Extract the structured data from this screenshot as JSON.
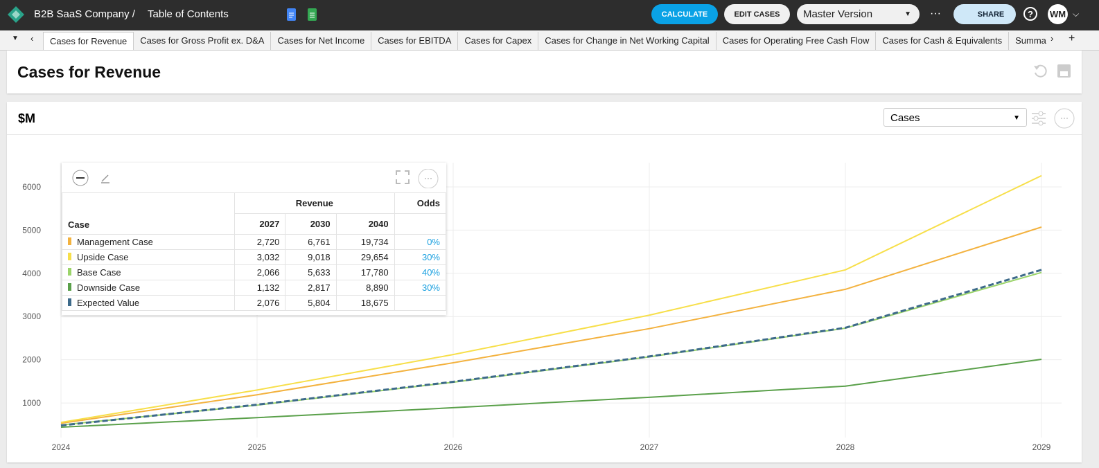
{
  "header": {
    "company": "B2B SaaS Company /",
    "toc": "Table of Contents",
    "calculate": "CALCULATE",
    "edit_cases": "EDIT CASES",
    "version": "Master Version",
    "share": "SHARE",
    "avatar": "WM"
  },
  "tabs": [
    "Cases for Revenue",
    "Cases for Gross Profit ex. D&A",
    "Cases for Net Income",
    "Cases for EBITDA",
    "Cases for Capex",
    "Cases for Change in Net Working Capital",
    "Cases for Operating Free Cash Flow",
    "Cases for Cash & Equivalents",
    "Summary Cases"
  ],
  "page_title": "Cases for Revenue",
  "panel": {
    "unit": "$M",
    "dropdown": "Cases"
  },
  "table": {
    "group_header": "Revenue",
    "odds_header": "Odds",
    "columns": [
      "Case",
      "2027",
      "2030",
      "2040"
    ],
    "rows": [
      {
        "values": [
          "2,720",
          "6,761",
          "19,734"
        ],
        "odds": "0%"
      },
      {
        "values": [
          "3,032",
          "9,018",
          "29,654"
        ],
        "odds": "30%"
      },
      {
        "values": [
          "2,066",
          "5,633",
          "17,780"
        ],
        "odds": "40%"
      },
      {
        "values": [
          "1,132",
          "2,817",
          "8,890"
        ],
        "odds": "30%"
      },
      {
        "values": [
          "2,076",
          "5,804",
          "18,675"
        ]
      }
    ]
  },
  "chart_data": {
    "type": "line",
    "categories": [
      "2024",
      "2025",
      "2026",
      "2027",
      "2028",
      "2029"
    ],
    "ylim": [
      200,
      6560
    ],
    "yticks": [
      1000,
      2000,
      3000,
      4000,
      5000,
      6000
    ],
    "grid": true,
    "series": [
      {
        "name": "Management Case",
        "color": "#f3b23f",
        "values": [
          530,
          1190,
          1930,
          2720,
          3630,
          5070
        ]
      },
      {
        "name": "Upside Case",
        "color": "#f7df4a",
        "values": [
          550,
          1300,
          2120,
          3032,
          4080,
          6260
        ]
      },
      {
        "name": "Base Case",
        "color": "#9bd46a",
        "values": [
          490,
          950,
          1480,
          2066,
          2730,
          4020
        ]
      },
      {
        "name": "Downside Case",
        "color": "#5aa04a",
        "values": [
          440,
          660,
          890,
          1132,
          1390,
          2010
        ]
      },
      {
        "name": "Expected Value",
        "color": "#3d6a8a",
        "dashed": true,
        "values": [
          480,
          960,
          1490,
          2076,
          2740,
          4080
        ]
      }
    ]
  }
}
